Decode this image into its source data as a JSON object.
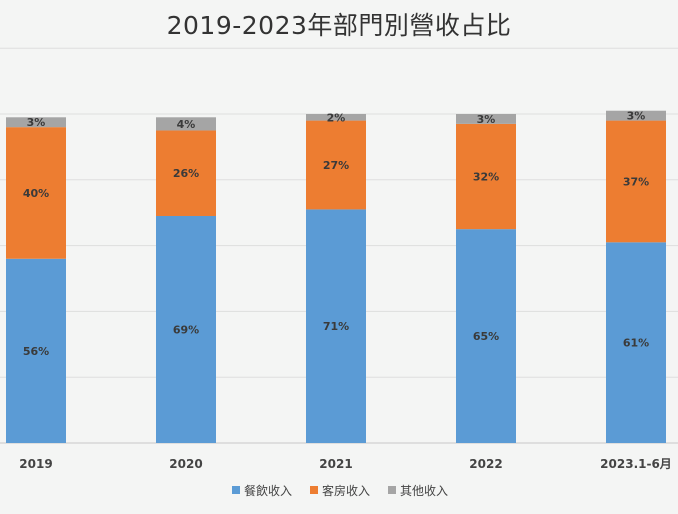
{
  "chart_data": {
    "type": "bar",
    "stacked": true,
    "percent": true,
    "title": "2019-2023年部門別營收占比",
    "categories": [
      "2019",
      "2020",
      "2021",
      "2022",
      "2023.1-6月"
    ],
    "series": [
      {
        "name": "餐飲收入",
        "color": "#5b9bd5",
        "values": [
          56,
          69,
          71,
          65,
          61
        ],
        "labels": [
          "56%",
          "69%",
          "71%",
          "65%",
          "61%"
        ]
      },
      {
        "name": "客房收入",
        "color": "#ed7d31",
        "values": [
          40,
          26,
          27,
          32,
          37
        ],
        "labels": [
          "40%",
          "26%",
          "27%",
          "32%",
          "37%"
        ]
      },
      {
        "name": "其他收入",
        "color": "#a5a5a5",
        "values": [
          3,
          4,
          2,
          3,
          3
        ],
        "labels": [
          "3%",
          "4%",
          "2%",
          "3%",
          "3%"
        ]
      }
    ],
    "ylim": [
      0,
      100
    ],
    "grid": true,
    "legend_position": "bottom"
  }
}
